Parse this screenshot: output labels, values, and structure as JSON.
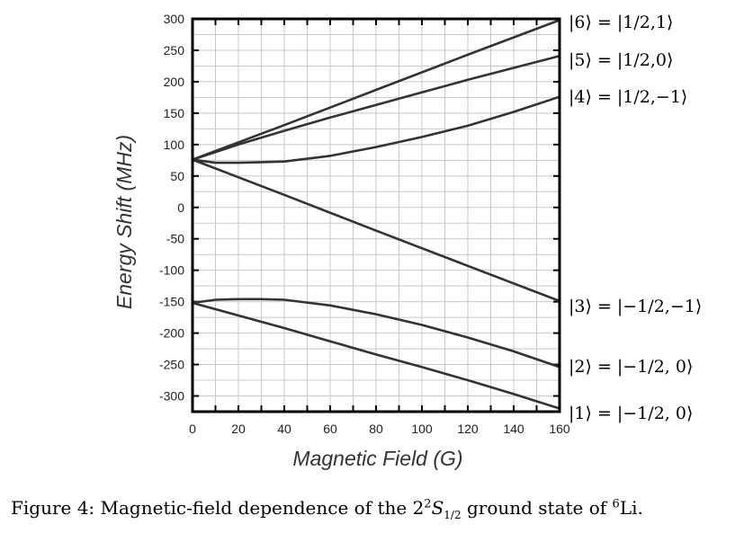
{
  "chart_data": {
    "type": "line",
    "xlabel": "Magnetic Field (G)",
    "ylabel": "Energy Shift (MHz)",
    "xlim": [
      0,
      160
    ],
    "ylim": [
      -325,
      300
    ],
    "x_ticks": [
      "0",
      "20",
      "40",
      "60",
      "80",
      "100",
      "120",
      "140",
      "160"
    ],
    "y_ticks": [
      "300",
      "250",
      "200",
      "150",
      "100",
      "50",
      "0",
      "-50",
      "-100",
      "-150",
      "-200",
      "-250",
      "-300"
    ],
    "grid": true,
    "series": [
      {
        "name": "|6⟩ = |1/2,1⟩",
        "x": [
          0,
          40,
          80,
          120,
          160
        ],
        "y": [
          76,
          131,
          187,
          243,
          298
        ]
      },
      {
        "name": "|5⟩ = |1/2,0⟩",
        "x": [
          0,
          20,
          40,
          60,
          80,
          100,
          120,
          140,
          160
        ],
        "y": [
          76,
          100,
          122,
          143,
          163,
          183,
          203,
          222,
          241
        ]
      },
      {
        "name": "|4⟩ = |1/2,−1⟩",
        "x": [
          0,
          10,
          20,
          30,
          40,
          60,
          80,
          100,
          120,
          140,
          160
        ],
        "y": [
          76,
          71,
          71,
          72,
          73,
          82,
          96,
          112,
          130,
          152,
          176
        ]
      },
      {
        "name": "|3⟩ = |−1/2,−1⟩",
        "x": [
          0,
          40,
          80,
          120,
          160
        ],
        "y": [
          76,
          20,
          -37,
          -93,
          -149
        ]
      },
      {
        "name": "|2⟩ = |−1/2, 0⟩",
        "x": [
          0,
          10,
          20,
          30,
          40,
          60,
          80,
          100,
          120,
          140,
          160
        ],
        "y": [
          -152,
          -147,
          -146,
          -146,
          -147,
          -156,
          -170,
          -187,
          -207,
          -229,
          -254
        ]
      },
      {
        "name": "|1⟩ = |−1/2, 0⟩",
        "x": [
          0,
          20,
          40,
          60,
          80,
          100,
          120,
          140,
          160
        ],
        "y": [
          -152,
          -172,
          -192,
          -213,
          -234,
          -254,
          -275,
          -297,
          -320
        ]
      }
    ],
    "colors": {
      "line": "#333333",
      "grid": "#c8c8c8",
      "frame": "#000000"
    }
  },
  "caption": {
    "prefix": "Figure 4: Magnetic-field dependence of the 2",
    "sup1": "2",
    "italic": "S",
    "sub": "1/2",
    "middle": " ground state of ",
    "sup2": "6",
    "suffix": "Li."
  }
}
